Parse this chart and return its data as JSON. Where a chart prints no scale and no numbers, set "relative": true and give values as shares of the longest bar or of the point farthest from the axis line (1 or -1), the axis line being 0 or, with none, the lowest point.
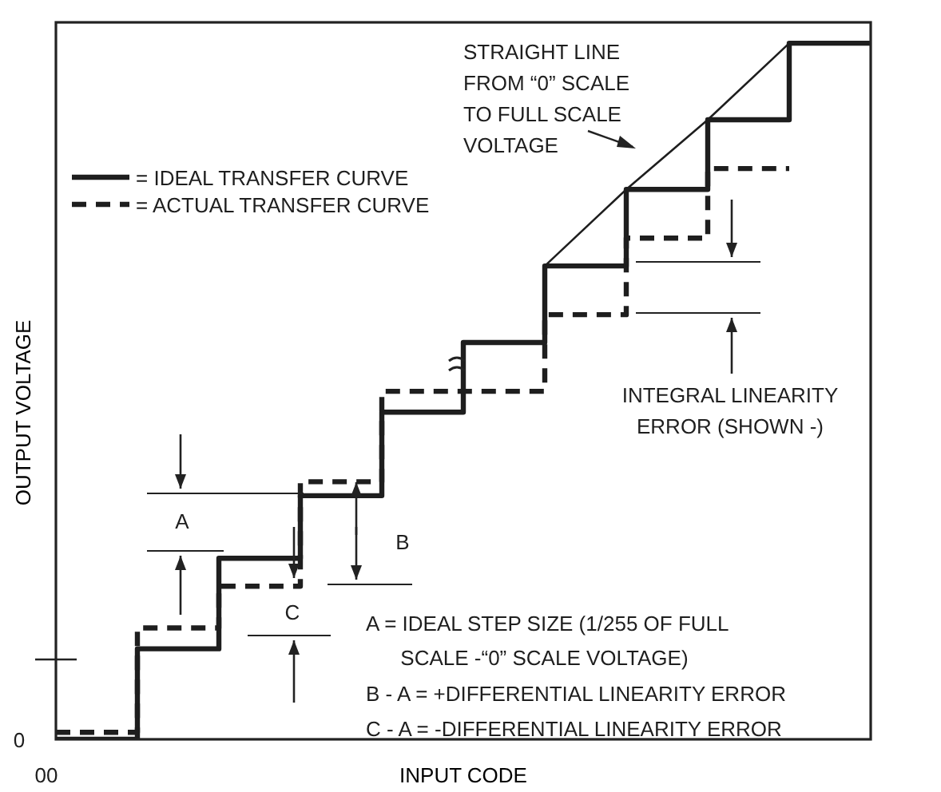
{
  "chart_data": {
    "type": "step",
    "relative": true,
    "xlabel": "INPUT CODE",
    "ylabel": "OUTPUT VOLTAGE",
    "categories": [
      null,
      null,
      null,
      null,
      null,
      null,
      null,
      null,
      null,
      null,
      null
    ],
    "series": [
      {
        "name": "= IDEAL TRANSFER CURVE",
        "color": "#1e1e1e",
        "line_style": "solid",
        "values": [
          0,
          0.13,
          0.26,
          0.35,
          0.47,
          0.57,
          0.68,
          0.79,
          0.89,
          1.0,
          1.0
        ]
      },
      {
        "name": "= ACTUAL TRANSFER CURVE",
        "color": "#1e1e1e",
        "line_style": "dashed",
        "values": [
          0.01,
          0.16,
          0.22,
          0.37,
          0.5,
          0.5,
          0.61,
          0.72,
          0.82,
          0.82,
          null
        ]
      },
      {
        "type": "line",
        "color": "#1e1e1e",
        "line_style": "solid",
        "values": [
          null,
          null,
          null,
          null,
          null,
          null,
          0.68,
          0.79,
          0.89,
          1.0,
          null
        ]
      }
    ],
    "legend": "top left",
    "marker": "none",
    "grid": false,
    "annotations": [
      "STRAIGHT LINE\nFROM “0” SCALE\nTO FULL SCALE\nVOLTAGE",
      "INTEGRAL LINEARITY\nERROR (SHOWN -)",
      "A",
      "B",
      "C",
      "A = IDEAL STEP SIZE (1/255 OF FULL\n      SCALE -“0” SCALE VOLTAGE)",
      "B - A = +DIFFERENTIAL LINEARITY ERROR",
      "C - A = -DIFFERENTIAL LINEARITY ERROR",
      "0",
      "00"
    ]
  }
}
